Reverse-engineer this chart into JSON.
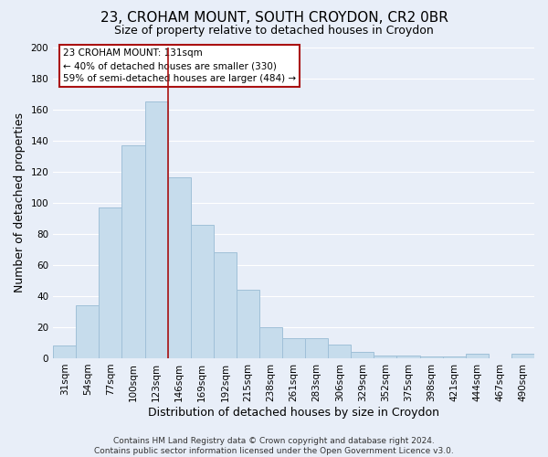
{
  "title": "23, CROHAM MOUNT, SOUTH CROYDON, CR2 0BR",
  "subtitle": "Size of property relative to detached houses in Croydon",
  "xlabel": "Distribution of detached houses by size in Croydon",
  "ylabel": "Number of detached properties",
  "footer_line1": "Contains HM Land Registry data © Crown copyright and database right 2024.",
  "footer_line2": "Contains public sector information licensed under the Open Government Licence v3.0.",
  "categories": [
    "31sqm",
    "54sqm",
    "77sqm",
    "100sqm",
    "123sqm",
    "146sqm",
    "169sqm",
    "192sqm",
    "215sqm",
    "238sqm",
    "261sqm",
    "283sqm",
    "306sqm",
    "329sqm",
    "352sqm",
    "375sqm",
    "398sqm",
    "421sqm",
    "444sqm",
    "467sqm",
    "490sqm"
  ],
  "values": [
    8,
    34,
    97,
    137,
    165,
    116,
    86,
    68,
    44,
    20,
    13,
    13,
    9,
    4,
    2,
    2,
    1,
    1,
    3,
    0,
    3
  ],
  "bar_color": "#c6dcec",
  "bar_edge_color": "#a0c0d8",
  "highlight_bar_index": 4,
  "highlight_line_color": "#aa1111",
  "ylim": [
    0,
    200
  ],
  "yticks": [
    0,
    20,
    40,
    60,
    80,
    100,
    120,
    140,
    160,
    180,
    200
  ],
  "annotation_title": "23 CROHAM MOUNT: 131sqm",
  "annotation_line1": "← 40% of detached houses are smaller (330)",
  "annotation_line2": "59% of semi-detached houses are larger (484) →",
  "annotation_box_facecolor": "#ffffff",
  "annotation_box_edgecolor": "#aa1111",
  "background_color": "#e8eef8",
  "grid_color": "#ffffff",
  "title_fontsize": 11,
  "subtitle_fontsize": 9,
  "label_fontsize": 9,
  "tick_fontsize": 7.5,
  "footer_fontsize": 6.5
}
